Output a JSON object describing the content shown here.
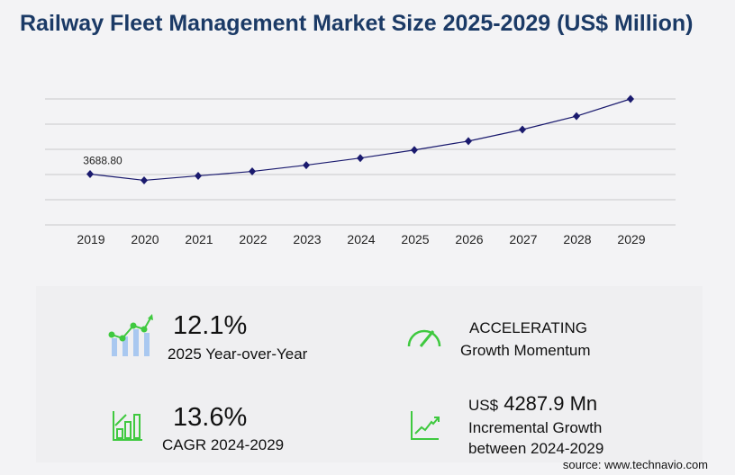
{
  "chart_data": {
    "type": "line",
    "title": "Railway Fleet Management Market Size 2025-2029 (US$ Million)",
    "categories": [
      "2019",
      "2020",
      "2021",
      "2022",
      "2023",
      "2024",
      "2025",
      "2026",
      "2027",
      "2028",
      "2029"
    ],
    "values": [
      3688.8,
      3235,
      3560,
      3880,
      4335,
      4850,
      5435,
      6080,
      6920,
      7890,
      9138
    ],
    "data_labels": {
      "2019": "3688.80"
    },
    "ylim": [
      0,
      9138
    ],
    "grid": true,
    "color": "#1a1a6e"
  },
  "kpis": {
    "yoy": {
      "value": "12.1%",
      "label": "2025 Year-over-Year"
    },
    "momentum": {
      "value": "ACCELERATING",
      "label": "Growth Momentum"
    },
    "cagr": {
      "value": "13.6%",
      "label": "CAGR 2024-2029"
    },
    "incremental": {
      "prefix": "US$",
      "value": "4287.9 Mn",
      "label1": "Incremental Growth",
      "label2": "between 2024-2029"
    }
  },
  "source": "source: www.technavio.com",
  "colors": {
    "title": "#1b3a66",
    "icon_green": "#3fc93f",
    "icon_blue": "#a9c8f0"
  }
}
